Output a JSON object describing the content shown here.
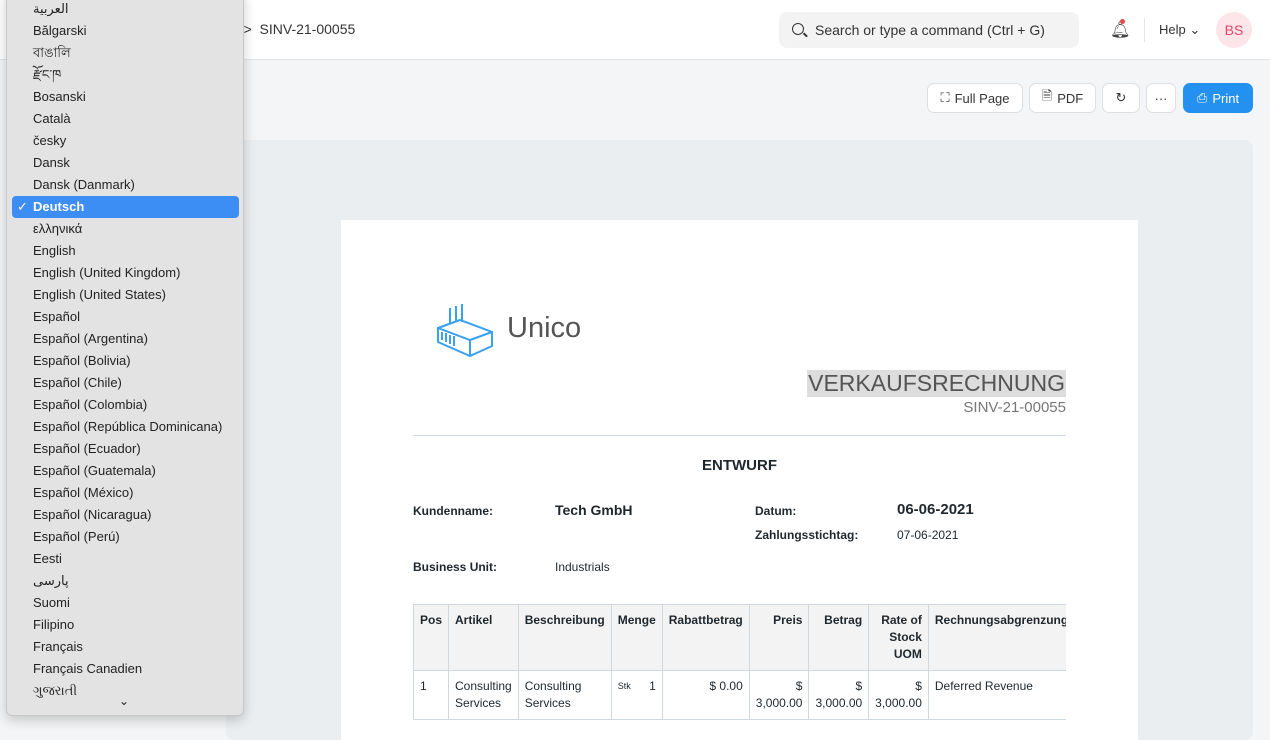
{
  "header": {
    "breadcrumb_partial": "e",
    "separator": ">",
    "breadcrumb_current": "SINV-21-00055",
    "search_placeholder": "Search or type a command (Ctrl + G)",
    "help_label": "Help",
    "avatar_initials": "BS"
  },
  "toolbar": {
    "full_page": "Full Page",
    "pdf": "PDF",
    "more": "···",
    "print": "Print"
  },
  "colors": {
    "primary": "#2490ef",
    "logo": "#3aa0f0",
    "selection": "#3c8ef5"
  },
  "language_dropdown": {
    "selected": "Deutsch",
    "items": [
      "العربية",
      "Bălgarski",
      "বাঙালি",
      "རྫོང་ཁ",
      "Bosanski",
      "Català",
      "česky",
      "Dansk",
      "Dansk (Danmark)",
      "Deutsch",
      "ελληνικά",
      "English",
      "English (United Kingdom)",
      "English (United States)",
      "Español",
      "Español (Argentina)",
      "Español (Bolivia)",
      "Español (Chile)",
      "Español (Colombia)",
      "Español (República Dominicana)",
      "Español (Ecuador)",
      "Español (Guatemala)",
      "Español (México)",
      "Español (Nicaragua)",
      "Español (Perú)",
      "Eesti",
      "پارسی",
      "Suomi",
      "Filipino",
      "Français",
      "Français Canadien",
      "ગુજરાતી"
    ]
  },
  "invoice": {
    "company": "Unico",
    "title": "VERKAUFSRECHNUNG",
    "number": "SINV-21-00055",
    "status": "ENTWURF",
    "customer_label": "Kundenname:",
    "customer": "Tech GmbH",
    "date_label": "Datum:",
    "date": "06-06-2021",
    "due_label": "Zahlungsstichtag:",
    "due": "07-06-2021",
    "bu_label": "Business Unit:",
    "bu": "Industrials",
    "columns": [
      "Pos",
      "Artikel",
      "Beschreibung",
      "Menge",
      "Rabattbetrag",
      "Preis",
      "Betrag",
      "Rate of Stock UOM",
      "Rechnungsabgrenzung"
    ],
    "rows": [
      {
        "pos": "1",
        "item": "Consulting Services",
        "desc": "Consulting Services",
        "uom": "Stk",
        "qty": "1",
        "discount": "$ 0.00",
        "rate": "$ 3,000.00",
        "amount": "$ 3,000.00",
        "stock_rate": "$ 3,000.00",
        "deferred": "Deferred Revenue"
      }
    ]
  }
}
